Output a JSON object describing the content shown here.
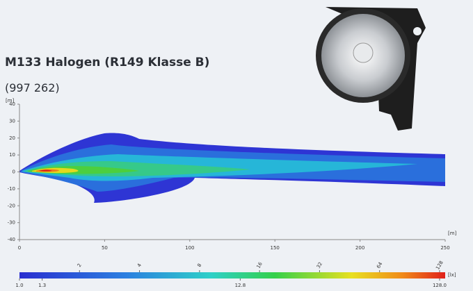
{
  "chart_data": {
    "type": "contour",
    "title": "M133 Halogen (R149 Klasse B)",
    "subtitle": "(997 262)",
    "x_unit": "[m]",
    "y_unit": "[m]",
    "xlim": [
      0,
      250
    ],
    "xticks": [
      0,
      50,
      100,
      150,
      200,
      250
    ],
    "ylim": [
      -40,
      40
    ],
    "yticks": [
      -40,
      -30,
      -20,
      -10,
      0,
      10,
      20,
      30,
      40
    ],
    "colorbar": {
      "unit": "[lx]",
      "log": true,
      "lim": [
        1,
        128
      ],
      "level_ticks": [
        2,
        4,
        8,
        16,
        32,
        64,
        128
      ],
      "ticks": [
        {
          "value": 1,
          "label": "1.0"
        },
        {
          "value": 1.3,
          "label": "1.3"
        },
        {
          "value": 12.8,
          "label": "12.8"
        },
        {
          "value": 128,
          "label": "128.0"
        }
      ]
    }
  }
}
